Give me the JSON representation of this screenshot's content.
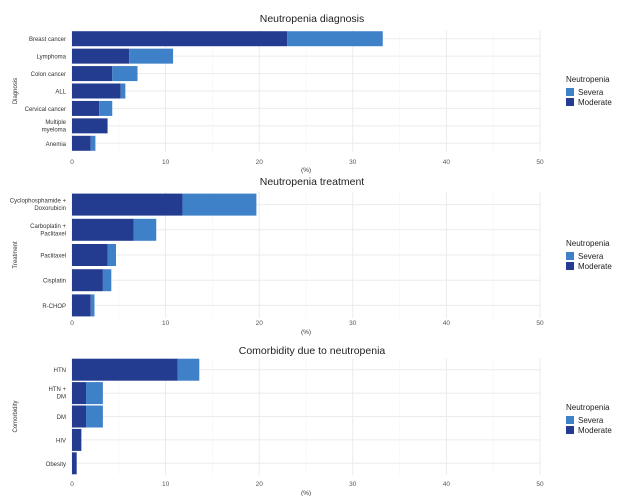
{
  "legend_title": "Neutropenia",
  "chart_data": [
    {
      "type": "bar",
      "orientation": "horizontal",
      "stacked": true,
      "title": "Neutropenia diagnosis",
      "xlabel": "(%)",
      "ylabel": "Diagnosis",
      "xlim": [
        0,
        50
      ],
      "xticks": [
        0,
        10,
        20,
        30,
        40,
        50
      ],
      "grid": true,
      "legend_position": "right",
      "categories": [
        "Breast cancer",
        "Lymphoma",
        "Colon cancer",
        "ALL",
        "Cervical cancer",
        "Multiple myeloma",
        "Anemia"
      ],
      "series": [
        {
          "name": "Moderate",
          "color": "#233C8F",
          "values": [
            23,
            6.1,
            4.3,
            5.2,
            2.9,
            3.8,
            2.0
          ]
        },
        {
          "name": "Severa",
          "color": "#3F81C8",
          "values": [
            10.2,
            4.7,
            2.7,
            0.5,
            1.4,
            0,
            0.5
          ]
        }
      ]
    },
    {
      "type": "bar",
      "orientation": "horizontal",
      "stacked": true,
      "title": "Neutropenia treatment",
      "xlabel": "(%)",
      "ylabel": "Treatment",
      "xlim": [
        0,
        50
      ],
      "xticks": [
        0,
        10,
        20,
        30,
        40,
        50
      ],
      "grid": true,
      "legend_position": "right",
      "categories": [
        "Cyclophosphamide + Doxorubicin",
        "Carboplatin + Paclitaxel",
        "Paclitaxel",
        "Cisplatin",
        "R-CHOP"
      ],
      "series": [
        {
          "name": "Moderate",
          "color": "#233C8F",
          "values": [
            11.8,
            6.6,
            3.8,
            3.3,
            2.0
          ]
        },
        {
          "name": "Severa",
          "color": "#3F81C8",
          "values": [
            7.9,
            2.4,
            0.9,
            0.9,
            0.4
          ]
        }
      ]
    },
    {
      "type": "bar",
      "orientation": "horizontal",
      "stacked": true,
      "title": "Comorbidity due to neutropenia",
      "xlabel": "(%)",
      "ylabel": "Comorbidity",
      "xlim": [
        0,
        50
      ],
      "xticks": [
        0,
        10,
        20,
        30,
        40,
        50
      ],
      "grid": true,
      "legend_position": "right",
      "categories": [
        "HTN",
        "HTN + DM",
        "DM",
        "HIV",
        "Obesity"
      ],
      "series": [
        {
          "name": "Moderate",
          "color": "#233C8F",
          "values": [
            11.3,
            1.5,
            1.5,
            1.0,
            0.5
          ]
        },
        {
          "name": "Severa",
          "color": "#3F81C8",
          "values": [
            2.3,
            1.8,
            1.8,
            0,
            0
          ]
        }
      ]
    }
  ]
}
